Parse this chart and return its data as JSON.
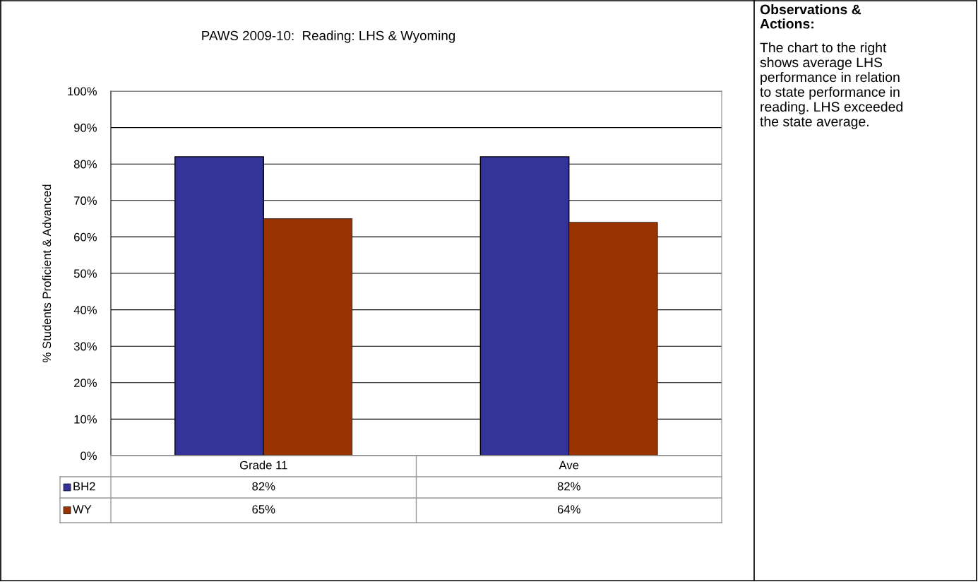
{
  "chart_data": [
    {
      "type": "bar",
      "title": "PAWS 2009-10:  Reading: LHS & Wyoming",
      "ylabel": "% Students Proficient & Advanced",
      "categories": [
        "Grade 11",
        "Ave"
      ],
      "series": [
        {
          "name": "BH2",
          "color": "#333399",
          "values": [
            82,
            82
          ],
          "value_labels": [
            "82%",
            "82%"
          ]
        },
        {
          "name": "WY",
          "color": "#993300",
          "values": [
            65,
            64
          ],
          "value_labels": [
            "65%",
            "64%"
          ]
        }
      ],
      "ylim": [
        0,
        100
      ],
      "yticks": [
        {
          "value": 0,
          "label": "0%"
        },
        {
          "value": 10,
          "label": "10%"
        },
        {
          "value": 20,
          "label": "20%"
        },
        {
          "value": 30,
          "label": "30%"
        },
        {
          "value": 40,
          "label": "40%"
        },
        {
          "value": 50,
          "label": "50%"
        },
        {
          "value": 60,
          "label": "60%"
        },
        {
          "value": 70,
          "label": "70%"
        },
        {
          "value": 80,
          "label": "80%"
        },
        {
          "value": 90,
          "label": "90%"
        },
        {
          "value": 100,
          "label": "100%"
        }
      ],
      "grid": "y",
      "legend": "bottom"
    },
    {
      "type": "other",
      "title": "Observations &\nActions:",
      "annotations": [
        "The chart to the right\nshows average LHS\nperformance in relation\nto state performance in\nreading. LHS exceeded\nthe state average."
      ]
    }
  ]
}
